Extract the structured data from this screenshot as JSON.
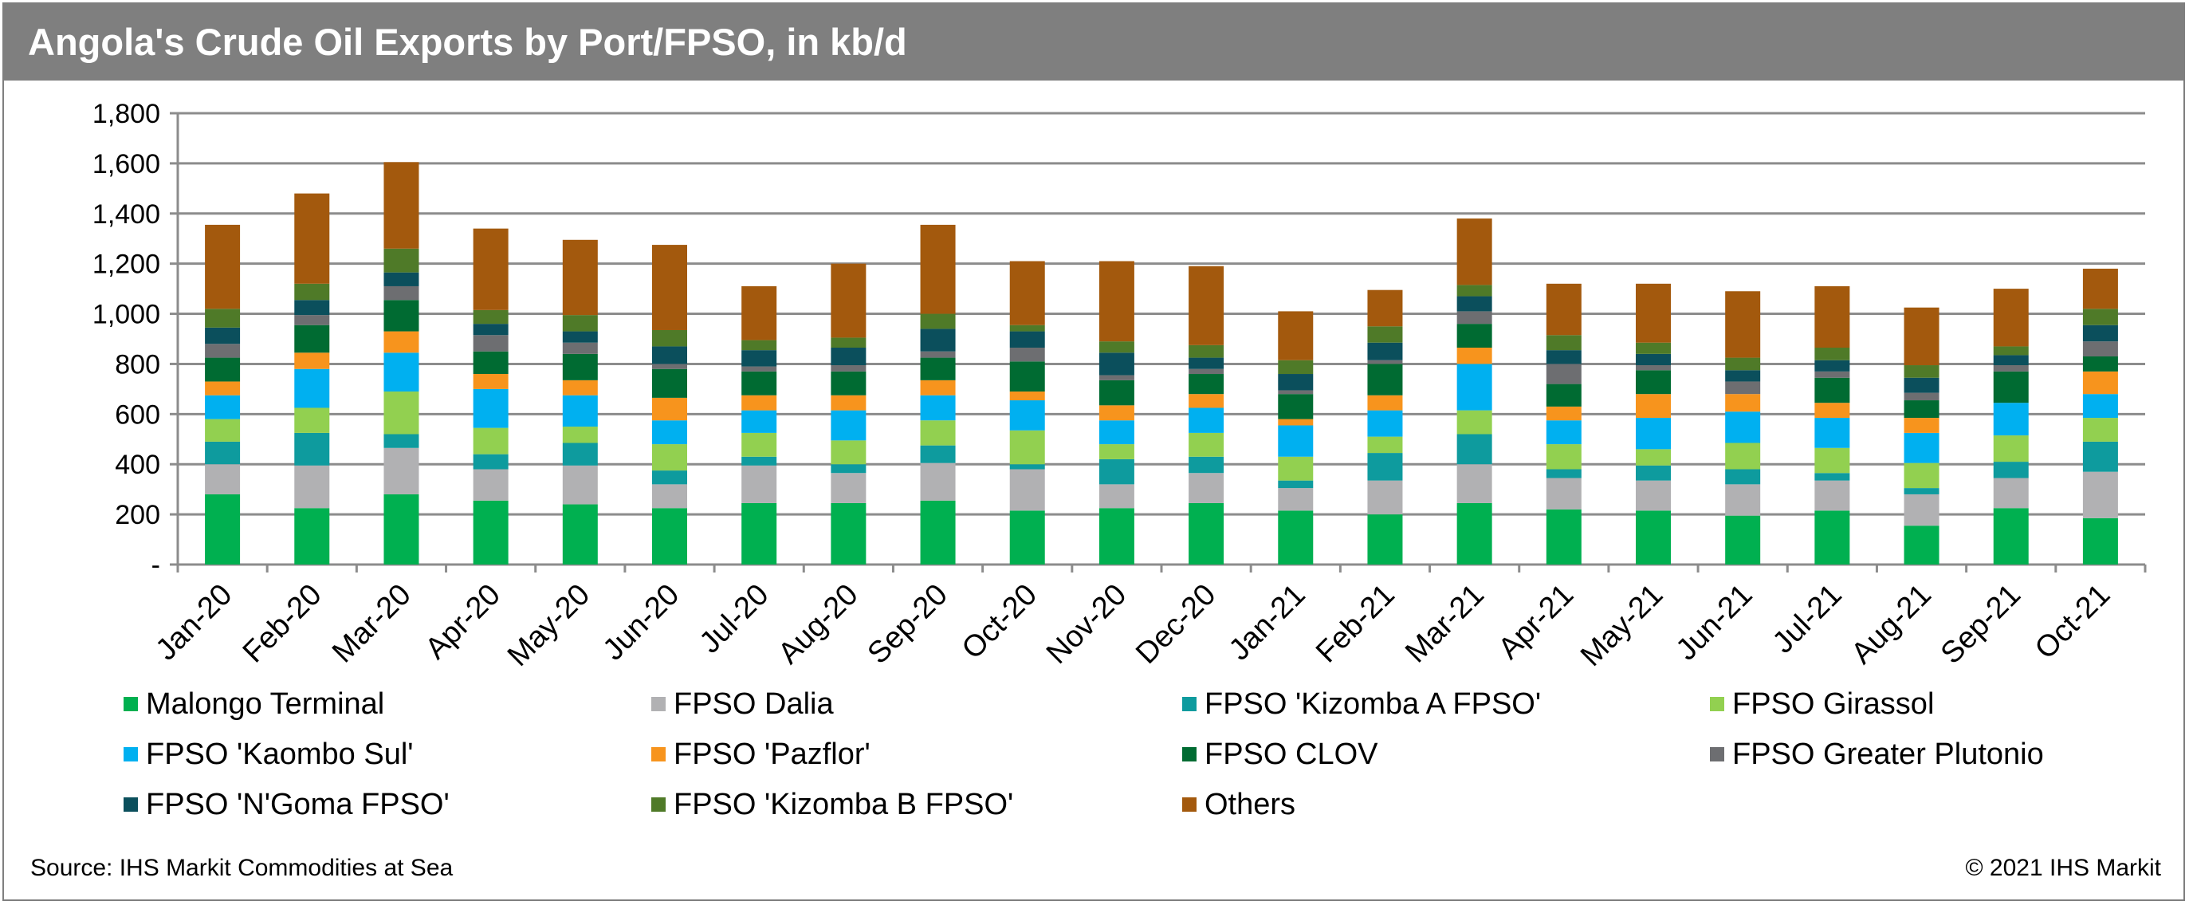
{
  "chart_data": {
    "type": "bar",
    "stacked": true,
    "title": "Angola's Crude Oil Exports by Port/FPSO, in kb/d",
    "xlabel": "",
    "ylabel": "",
    "ylim": [
      0,
      1800
    ],
    "yticks": [
      0,
      200,
      400,
      600,
      800,
      1000,
      1200,
      1400,
      1600,
      1800
    ],
    "ytick_labels": [
      "-",
      "200",
      "400",
      "600",
      "800",
      "1,000",
      "1,200",
      "1,400",
      "1,600",
      "1,800"
    ],
    "grid": true,
    "legend_position": "bottom",
    "categories": [
      "Jan-20",
      "Feb-20",
      "Mar-20",
      "Apr-20",
      "May-20",
      "Jun-20",
      "Jul-20",
      "Aug-20",
      "Sep-20",
      "Oct-20",
      "Nov-20",
      "Dec-20",
      "Jan-21",
      "Feb-21",
      "Mar-21",
      "Apr-21",
      "May-21",
      "Jun-21",
      "Jul-21",
      "Aug-21",
      "Sep-21",
      "Oct-21"
    ],
    "series": [
      {
        "name": "Malongo Terminal",
        "color": "#00b050",
        "values": [
          280,
          225,
          280,
          255,
          240,
          225,
          245,
          245,
          255,
          215,
          225,
          245,
          215,
          200,
          245,
          220,
          215,
          195,
          215,
          155,
          225,
          185
        ]
      },
      {
        "name": "FPSO Dalia",
        "color": "#b1b1b3",
        "values": [
          120,
          170,
          185,
          125,
          155,
          95,
          150,
          120,
          150,
          165,
          95,
          120,
          90,
          135,
          155,
          125,
          120,
          125,
          120,
          125,
          120,
          185
        ]
      },
      {
        "name": "FPSO 'Kizomba A FPSO'",
        "color": "#0e9b9e",
        "values": [
          90,
          130,
          55,
          60,
          90,
          55,
          35,
          35,
          70,
          20,
          100,
          65,
          30,
          110,
          120,
          35,
          60,
          60,
          30,
          25,
          65,
          120
        ]
      },
      {
        "name": "FPSO Girassol",
        "color": "#92d050",
        "values": [
          90,
          100,
          170,
          105,
          65,
          105,
          95,
          95,
          100,
          135,
          60,
          95,
          95,
          65,
          95,
          100,
          65,
          105,
          100,
          100,
          105,
          95
        ]
      },
      {
        "name": "FPSO 'Kaombo Sul'",
        "color": "#00b0f0",
        "values": [
          95,
          155,
          155,
          155,
          125,
          95,
          90,
          120,
          100,
          120,
          95,
          100,
          125,
          105,
          185,
          95,
          125,
          125,
          120,
          120,
          130,
          95
        ]
      },
      {
        "name": "FPSO 'Pazflor'",
        "color": "#f7941d",
        "values": [
          55,
          65,
          85,
          60,
          60,
          90,
          60,
          60,
          60,
          35,
          60,
          55,
          25,
          60,
          65,
          55,
          95,
          70,
          60,
          60,
          0,
          90
        ]
      },
      {
        "name": "FPSO CLOV",
        "color": "#006b32",
        "values": [
          95,
          110,
          125,
          90,
          105,
          115,
          95,
          95,
          90,
          120,
          100,
          80,
          100,
          125,
          95,
          90,
          95,
          0,
          100,
          70,
          125,
          60
        ]
      },
      {
        "name": "FPSO Greater Plutonio",
        "color": "#6d6e71",
        "values": [
          55,
          40,
          55,
          65,
          45,
          20,
          20,
          25,
          25,
          55,
          20,
          20,
          15,
          15,
          50,
          80,
          20,
          50,
          25,
          30,
          25,
          60
        ]
      },
      {
        "name": "FPSO 'N'Goma FPSO'",
        "color": "#0b4f5c",
        "values": [
          65,
          60,
          55,
          45,
          45,
          70,
          65,
          70,
          90,
          65,
          90,
          45,
          65,
          70,
          60,
          55,
          45,
          45,
          45,
          60,
          40,
          65
        ]
      },
      {
        "name": "FPSO 'Kizomba B FPSO'",
        "color": "#4f7a28",
        "values": [
          75,
          65,
          95,
          55,
          65,
          65,
          40,
          40,
          60,
          25,
          45,
          50,
          55,
          65,
          45,
          60,
          45,
          50,
          50,
          50,
          35,
          65
        ]
      },
      {
        "name": "Others",
        "color": "#a3590d",
        "values": [
          335,
          360,
          345,
          325,
          300,
          340,
          215,
          295,
          355,
          255,
          320,
          315,
          195,
          145,
          265,
          205,
          235,
          265,
          245,
          230,
          230,
          160
        ]
      }
    ]
  },
  "header": {
    "title": "Angola's Crude Oil Exports by Port/FPSO, in kb/d"
  },
  "footer": {
    "source": "Source: IHS Markit Commodities at Sea",
    "copyright": "© 2021 IHS Markit"
  }
}
